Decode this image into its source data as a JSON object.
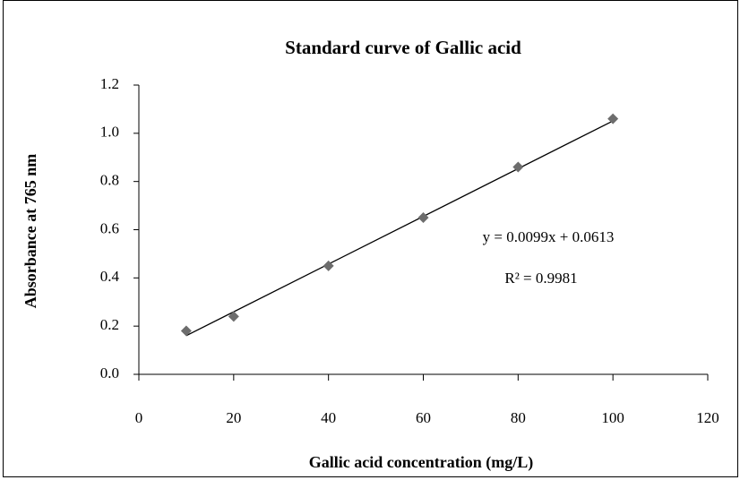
{
  "chart_data": {
    "type": "scatter",
    "title": "Standard curve of Gallic acid",
    "x_label": "Gallic acid concentration (mg/L)",
    "y_label": "Absorbance at 765 nm",
    "x": [
      10,
      20,
      40,
      60,
      80,
      100
    ],
    "values": [
      0.18,
      0.24,
      0.45,
      0.65,
      0.86,
      1.06
    ],
    "color": "#6d6d6d",
    "xlim": [
      0,
      120
    ],
    "xticks": [
      0,
      20,
      40,
      60,
      80,
      100,
      120
    ],
    "ylim": [
      0,
      1.2
    ],
    "yticks": [
      {
        "value": 0,
        "label": "0.0"
      },
      0.2,
      0.4,
      0.6,
      0.8,
      {
        "value": 1,
        "label": "1.0"
      },
      1.2
    ],
    "grid": false,
    "trendline": {
      "equation": "y = 0.0099x + 0.0613",
      "r_squared": "R² = 0.9981"
    }
  }
}
